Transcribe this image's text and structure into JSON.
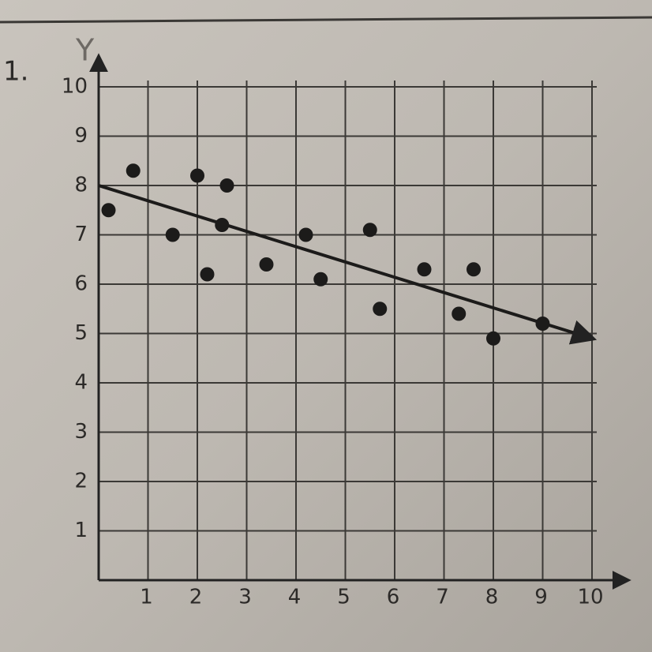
{
  "problem_number": "1.",
  "chart_data": {
    "type": "scatter",
    "y_label": "Y",
    "x": [
      0.2,
      0.7,
      1.5,
      2.0,
      2.6,
      2.5,
      2.2,
      3.4,
      4.2,
      4.5,
      5.5,
      5.7,
      6.6,
      7.6,
      7.3,
      8.0,
      9.0
    ],
    "series": [
      {
        "color": "#1c1b1a",
        "values": [
          7.5,
          8.3,
          7.0,
          8.2,
          8.0,
          7.2,
          6.2,
          6.4,
          7.0,
          6.1,
          7.1,
          5.5,
          6.3,
          6.3,
          5.4,
          4.9,
          5.2
        ]
      }
    ],
    "trend_line": {
      "x": [
        0,
        10
      ],
      "y": [
        8,
        4.9
      ]
    },
    "xlim": [
      0,
      10
    ],
    "ylim": [
      0,
      10
    ],
    "xticks": [
      1,
      2,
      3,
      4,
      5,
      6,
      7,
      8,
      9,
      10
    ],
    "yticks": [
      1,
      2,
      3,
      4,
      5,
      6,
      7,
      8,
      9,
      10
    ],
    "grid": true
  }
}
